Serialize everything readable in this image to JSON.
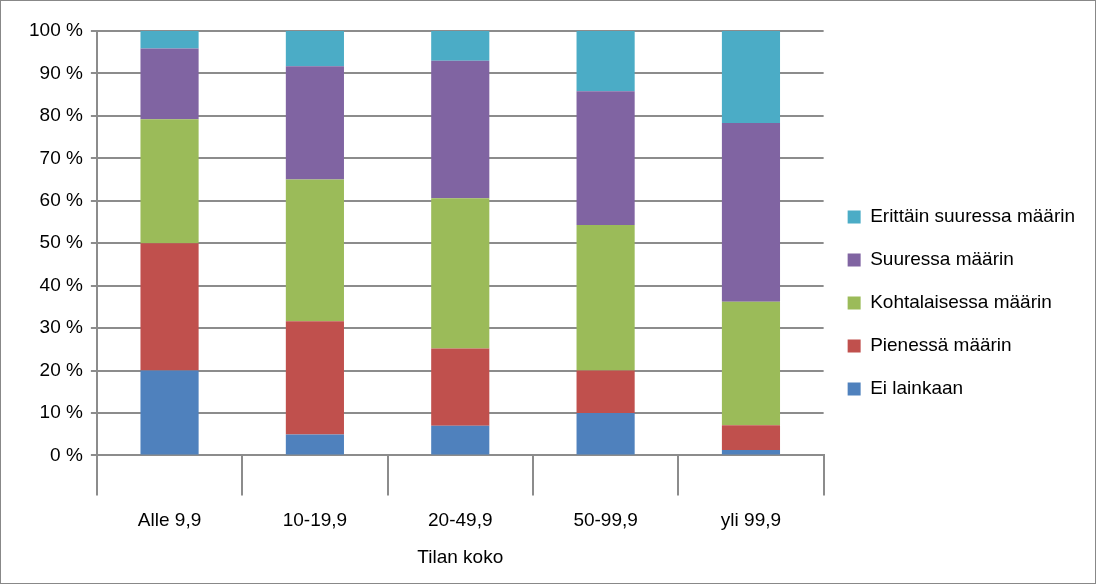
{
  "chart_data": {
    "type": "bar",
    "stacked": true,
    "xlabel": "Tilan koko",
    "categories": [
      "Alle 9,9",
      "10-19,9",
      "20-49,9",
      "50-99,9",
      "yli 99,9"
    ],
    "series": [
      {
        "name": "Ei lainkaan",
        "color": "#4f81bd",
        "values": [
          20,
          4.9,
          7.0,
          10,
          1.3
        ]
      },
      {
        "name": "Pienessä määrin",
        "color": "#c0504d",
        "values": [
          30,
          26.7,
          18.2,
          10,
          5.8
        ]
      },
      {
        "name": "Kohtalaisessa määrin",
        "color": "#9bbb59",
        "values": [
          29.2,
          33.4,
          35.4,
          34.3,
          29.1
        ]
      },
      {
        "name": "Suuressa määrin",
        "color": "#8064a2",
        "values": [
          16.7,
          26.7,
          32.4,
          31.5,
          42.1
        ]
      },
      {
        "name": "Erittäin suuressa määrin",
        "color": "#4bacc6",
        "values": [
          4.1,
          8.3,
          7.0,
          14.2,
          21.7
        ]
      }
    ],
    "ylim": [
      0,
      100
    ],
    "yticks": [
      {
        "value": 0,
        "label": "0 %"
      },
      {
        "value": 10,
        "label": "10 %"
      },
      {
        "value": 20,
        "label": "20 %"
      },
      {
        "value": 30,
        "label": "30 %"
      },
      {
        "value": 40,
        "label": "40 %"
      },
      {
        "value": 50,
        "label": "50 %"
      },
      {
        "value": 60,
        "label": "60 %"
      },
      {
        "value": 70,
        "label": "70 %"
      },
      {
        "value": 80,
        "label": "80 %"
      },
      {
        "value": 90,
        "label": "90 %"
      },
      {
        "value": 100,
        "label": "100 %"
      }
    ],
    "grid": "y",
    "legend": "right"
  }
}
